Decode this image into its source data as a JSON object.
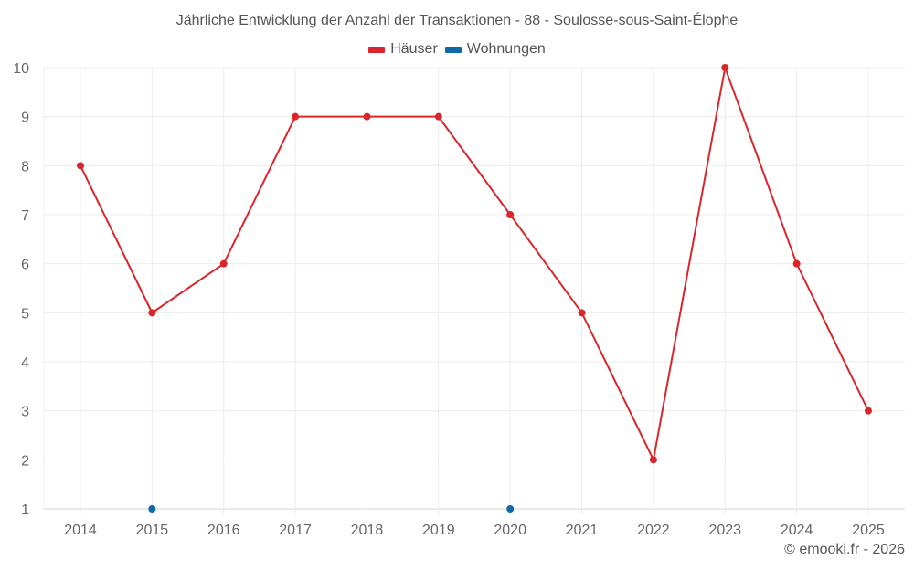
{
  "chart_data": {
    "type": "line",
    "title": "Jährliche Entwicklung der Anzahl der Transaktionen - 88 - Soulosse-sous-Saint-Élophe",
    "xlabel": "",
    "ylabel": "",
    "categories": [
      "2014",
      "2015",
      "2016",
      "2017",
      "2018",
      "2019",
      "2020",
      "2021",
      "2022",
      "2023",
      "2024",
      "2025"
    ],
    "series": [
      {
        "name": "Häuser",
        "color": "#d9262a",
        "values": [
          8,
          5,
          6,
          9,
          9,
          9,
          7,
          5,
          2,
          10,
          6,
          3
        ]
      },
      {
        "name": "Wohnungen",
        "color": "#0d6aa8",
        "values": [
          null,
          1,
          null,
          null,
          null,
          null,
          1,
          null,
          null,
          null,
          null,
          null
        ]
      }
    ],
    "ylim": [
      1,
      10
    ],
    "yticks": [
      1,
      2,
      3,
      4,
      5,
      6,
      7,
      8,
      9,
      10
    ],
    "grid": true,
    "legend_position": "top"
  },
  "header": {
    "title": "Jährliche Entwicklung der Anzahl der Transaktionen - 88 - Soulosse-sous-Saint-Élophe"
  },
  "legend": {
    "items": [
      {
        "label": "Häuser",
        "color": "#d9262a"
      },
      {
        "label": "Wohnungen",
        "color": "#0d6aa8"
      }
    ]
  },
  "footer": {
    "credit": "© emooki.fr - 2026"
  }
}
